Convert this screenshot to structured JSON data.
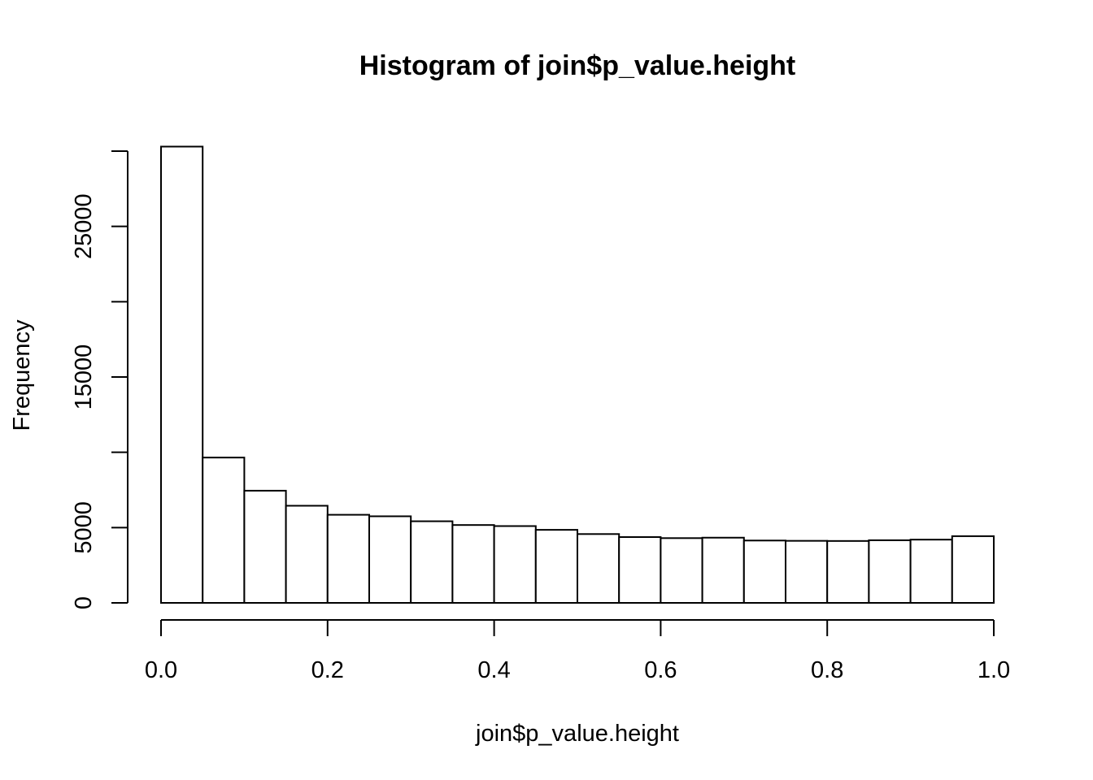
{
  "chart_data": {
    "type": "bar",
    "title": "Histogram of join$p_value.height",
    "xlabel": "join$p_value.height",
    "ylabel": "Frequency",
    "xlim": [
      0,
      1
    ],
    "ylim": [
      0,
      30000
    ],
    "bin_width": 0.05,
    "bins": [
      {
        "x0": 0.0,
        "x1": 0.05,
        "count": 30300
      },
      {
        "x0": 0.05,
        "x1": 0.1,
        "count": 9650
      },
      {
        "x0": 0.1,
        "x1": 0.15,
        "count": 7450
      },
      {
        "x0": 0.15,
        "x1": 0.2,
        "count": 6450
      },
      {
        "x0": 0.2,
        "x1": 0.25,
        "count": 5850
      },
      {
        "x0": 0.25,
        "x1": 0.3,
        "count": 5750
      },
      {
        "x0": 0.3,
        "x1": 0.35,
        "count": 5420
      },
      {
        "x0": 0.35,
        "x1": 0.4,
        "count": 5170
      },
      {
        "x0": 0.4,
        "x1": 0.45,
        "count": 5100
      },
      {
        "x0": 0.45,
        "x1": 0.5,
        "count": 4850
      },
      {
        "x0": 0.5,
        "x1": 0.55,
        "count": 4570
      },
      {
        "x0": 0.55,
        "x1": 0.6,
        "count": 4370
      },
      {
        "x0": 0.6,
        "x1": 0.65,
        "count": 4300
      },
      {
        "x0": 0.65,
        "x1": 0.7,
        "count": 4330
      },
      {
        "x0": 0.7,
        "x1": 0.75,
        "count": 4140
      },
      {
        "x0": 0.75,
        "x1": 0.8,
        "count": 4120
      },
      {
        "x0": 0.8,
        "x1": 0.85,
        "count": 4110
      },
      {
        "x0": 0.85,
        "x1": 0.9,
        "count": 4160
      },
      {
        "x0": 0.9,
        "x1": 0.95,
        "count": 4200
      },
      {
        "x0": 0.95,
        "x1": 1.0,
        "count": 4430
      }
    ],
    "x_ticks": [
      {
        "value": 0.0,
        "label": "0.0"
      },
      {
        "value": 0.2,
        "label": "0.2"
      },
      {
        "value": 0.4,
        "label": "0.4"
      },
      {
        "value": 0.6,
        "label": "0.6"
      },
      {
        "value": 0.8,
        "label": "0.8"
      },
      {
        "value": 1.0,
        "label": "1.0"
      }
    ],
    "y_ticks": [
      {
        "value": 0,
        "label": "0"
      },
      {
        "value": 5000,
        "label": "5000"
      },
      {
        "value": 10000,
        "label": ""
      },
      {
        "value": 15000,
        "label": "15000"
      },
      {
        "value": 20000,
        "label": ""
      },
      {
        "value": 25000,
        "label": "25000"
      },
      {
        "value": 30000,
        "label": ""
      }
    ],
    "grid": false,
    "bar_fill": "#ffffff",
    "bar_stroke": "#000000"
  }
}
